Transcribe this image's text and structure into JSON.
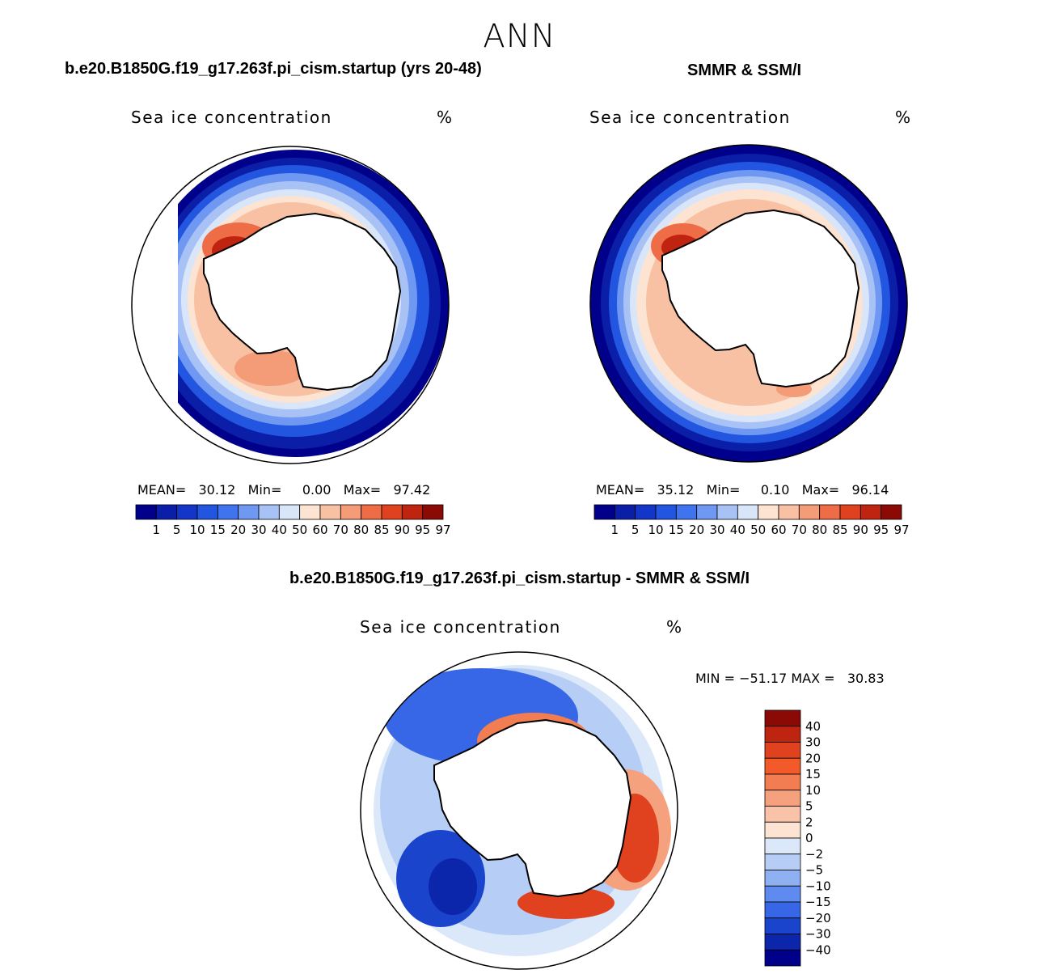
{
  "title": "ANN",
  "panels": [
    {
      "case_title": "b.e20.B1850G.f19_g17.263f.pi_cism.startup (yrs 20-48)",
      "variable": "Sea ice concentration",
      "units": "%",
      "stats": {
        "mean_label": "MEAN=",
        "mean": "30.12",
        "min_label": "Min=",
        "min": "0.00",
        "max_label": "Max=",
        "max": "97.42"
      }
    },
    {
      "case_title": "SMMR & SSM/I",
      "variable": "Sea ice concentration",
      "units": "%",
      "stats": {
        "mean_label": "MEAN=",
        "mean": "35.12",
        "min_label": "Min=",
        "min": "0.10",
        "max_label": "Max=",
        "max": "96.14"
      }
    }
  ],
  "diff_panel": {
    "case_title": "b.e20.B1850G.f19_g17.263f.pi_cism.startup - SMMR & SSM/I",
    "variable": "Sea ice concentration",
    "units": "%",
    "minmax": "MIN = −51.17 MAX =   30.83"
  },
  "conc_colorbar": {
    "labels": [
      "1",
      "5",
      "10",
      "15",
      "20",
      "30",
      "40",
      "50",
      "60",
      "70",
      "80",
      "85",
      "90",
      "95",
      "97"
    ],
    "colors": [
      "#00008b",
      "#0a1ea8",
      "#1436c8",
      "#2255e0",
      "#3f74ee",
      "#6f98f2",
      "#a9c2f5",
      "#d9e6fa",
      "#fde3d1",
      "#f8c1a4",
      "#f49b78",
      "#ee6c46",
      "#e0411e",
      "#bf2410",
      "#8b0a05"
    ]
  },
  "diff_colorbar": {
    "labels": [
      "40",
      "30",
      "20",
      "15",
      "10",
      "5",
      "2",
      "0",
      "−2",
      "−5",
      "−10",
      "−15",
      "−20",
      "−30",
      "−40"
    ],
    "colors": [
      "#8b0a05",
      "#bf2410",
      "#e0411e",
      "#f25a2a",
      "#f27d52",
      "#f6a17e",
      "#f8c3a8",
      "#fde3d1",
      "#dbe8fa",
      "#b6cdf5",
      "#8fb1f2",
      "#5f8aef",
      "#3767e6",
      "#1b44cc",
      "#0b26aa",
      "#00008b"
    ]
  }
}
